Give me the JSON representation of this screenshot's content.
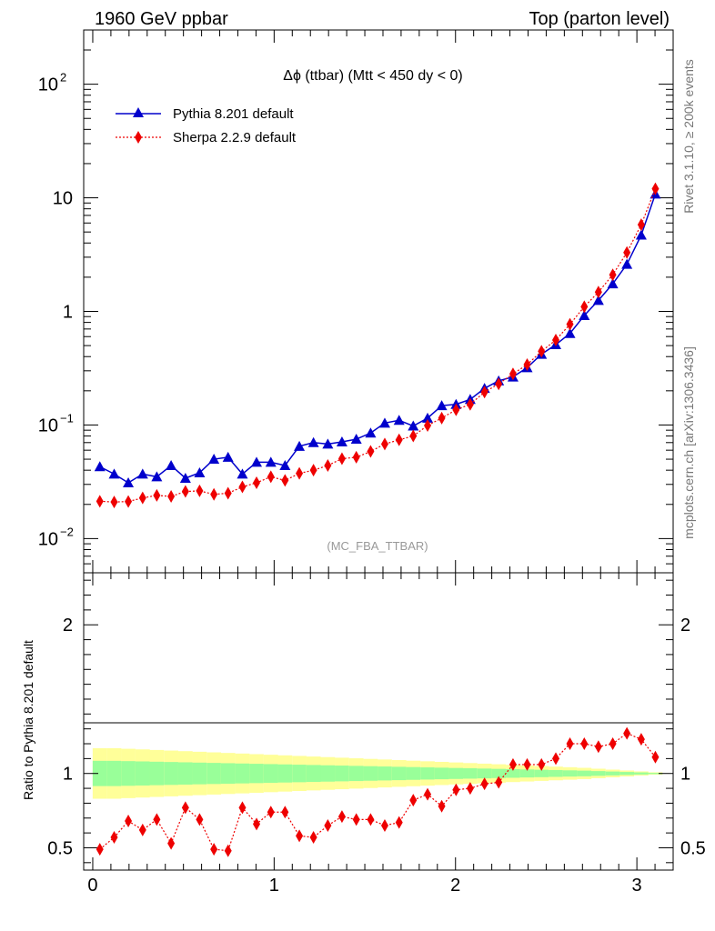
{
  "header": {
    "left": "1960 GeV ppbar",
    "right": "Top (parton level)"
  },
  "side_labels": {
    "rivet": "Rivet 3.1.10, ≥ 200k events",
    "mcplots": "mcplots.cern.ch [arXiv:1306.3436]"
  },
  "colors": {
    "pythia": "#0000cc",
    "sherpa": "#ee0000",
    "band_inner": "#99ff99",
    "band_outer": "#ffff99"
  },
  "chart_data": {
    "type": "line",
    "title": "Δϕ (ttbar) (Mtt < 450 dy < 0)",
    "watermark": "(MC_FBA_TTBAR)",
    "xlabel": "",
    "ylabel": "",
    "xlim": [
      -0.05,
      3.2
    ],
    "ylim": [
      0.005,
      300
    ],
    "yscale": "log",
    "yticks": [
      {
        "v": 0.01,
        "base": "10",
        "exp": "−2"
      },
      {
        "v": 0.1,
        "base": "10",
        "exp": "−1"
      },
      {
        "v": 1,
        "base": "1",
        "exp": ""
      },
      {
        "v": 10,
        "base": "10",
        "exp": ""
      },
      {
        "v": 100,
        "base": "10",
        "exp": "2"
      }
    ],
    "xticks": [
      "0",
      "1",
      "2",
      "3"
    ],
    "legend_position": "top-left",
    "x": [
      0.039,
      0.118,
      0.196,
      0.275,
      0.353,
      0.432,
      0.511,
      0.589,
      0.668,
      0.746,
      0.825,
      0.903,
      0.982,
      1.06,
      1.139,
      1.217,
      1.296,
      1.374,
      1.453,
      1.532,
      1.61,
      1.689,
      1.767,
      1.846,
      1.924,
      2.003,
      2.081,
      2.16,
      2.238,
      2.317,
      2.395,
      2.474,
      2.553,
      2.631,
      2.71,
      2.788,
      2.867,
      2.945,
      3.024,
      3.102
    ],
    "series": [
      {
        "name": "Pythia 8.201 default",
        "marker": "triangle",
        "values": [
          0.043,
          0.037,
          0.031,
          0.037,
          0.035,
          0.044,
          0.034,
          0.038,
          0.05,
          0.052,
          0.037,
          0.047,
          0.047,
          0.044,
          0.065,
          0.07,
          0.068,
          0.071,
          0.075,
          0.085,
          0.104,
          0.11,
          0.098,
          0.115,
          0.148,
          0.152,
          0.168,
          0.21,
          0.245,
          0.265,
          0.32,
          0.42,
          0.51,
          0.64,
          0.92,
          1.25,
          1.75,
          2.6,
          4.7,
          10.8
        ]
      },
      {
        "name": "Sherpa 2.2.9 default",
        "marker": "diamond",
        "values": [
          0.0213,
          0.021,
          0.0212,
          0.0228,
          0.024,
          0.0235,
          0.026,
          0.0263,
          0.0245,
          0.0251,
          0.0285,
          0.031,
          0.035,
          0.0325,
          0.0375,
          0.04,
          0.044,
          0.0505,
          0.052,
          0.0585,
          0.068,
          0.074,
          0.08,
          0.099,
          0.115,
          0.136,
          0.152,
          0.195,
          0.23,
          0.282,
          0.34,
          0.445,
          0.56,
          0.77,
          1.1,
          1.48,
          2.1,
          3.3,
          5.8,
          12.0
        ]
      }
    ],
    "ratio": {
      "ylabel": "Ratio to Pythia 8.201 default",
      "ylim": [
        0.35,
        2.35
      ],
      "yticks": [
        "0.5",
        "1",
        "2"
      ],
      "yticks_values": [
        0.5,
        1,
        2
      ],
      "values": [
        0.49,
        0.57,
        0.68,
        0.62,
        0.69,
        0.53,
        0.77,
        0.69,
        0.49,
        0.48,
        0.77,
        0.66,
        0.74,
        0.74,
        0.58,
        0.57,
        0.65,
        0.71,
        0.69,
        0.69,
        0.65,
        0.67,
        0.82,
        0.86,
        0.78,
        0.89,
        0.9,
        0.93,
        0.94,
        1.06,
        1.06,
        1.06,
        1.1,
        1.2,
        1.2,
        1.18,
        1.2,
        1.27,
        1.23,
        1.11
      ],
      "band_inner": [
        0.085,
        0.085,
        0.083,
        0.081,
        0.079,
        0.077,
        0.075,
        0.073,
        0.071,
        0.069,
        0.067,
        0.065,
        0.063,
        0.061,
        0.059,
        0.057,
        0.055,
        0.053,
        0.051,
        0.049,
        0.047,
        0.045,
        0.043,
        0.041,
        0.039,
        0.037,
        0.035,
        0.033,
        0.031,
        0.029,
        0.027,
        0.025,
        0.023,
        0.021,
        0.019,
        0.016,
        0.013,
        0.01,
        0.007,
        0.004
      ],
      "band_outer": [
        0.17,
        0.17,
        0.166,
        0.162,
        0.158,
        0.154,
        0.15,
        0.146,
        0.142,
        0.138,
        0.134,
        0.13,
        0.126,
        0.122,
        0.118,
        0.114,
        0.11,
        0.106,
        0.102,
        0.098,
        0.094,
        0.09,
        0.086,
        0.082,
        0.078,
        0.074,
        0.07,
        0.066,
        0.062,
        0.058,
        0.054,
        0.05,
        0.046,
        0.042,
        0.038,
        0.032,
        0.026,
        0.02,
        0.014,
        0.008
      ]
    }
  }
}
